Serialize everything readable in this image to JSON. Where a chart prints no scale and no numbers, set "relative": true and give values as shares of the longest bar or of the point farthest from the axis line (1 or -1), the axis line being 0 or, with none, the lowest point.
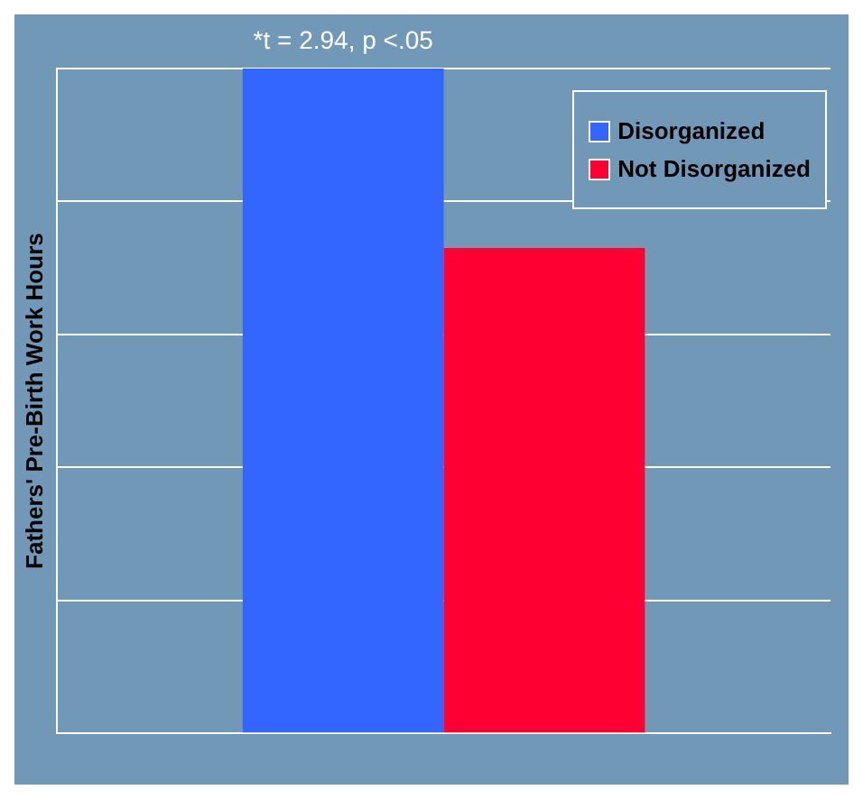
{
  "chart_data": {
    "type": "bar",
    "ylabel": "Fathers' Pre-Birth Work Hours",
    "categories": [
      null
    ],
    "relative": true,
    "series": [
      {
        "name": "Disorganized",
        "color": "#3366ff",
        "values": [
          1
        ]
      },
      {
        "name": "Not Disorganized",
        "color": "#ff0033",
        "values": [
          0.73
        ]
      }
    ],
    "annotations": [
      "*t = 2.94, p <.05"
    ],
    "legend": "top right",
    "grid": "y"
  }
}
